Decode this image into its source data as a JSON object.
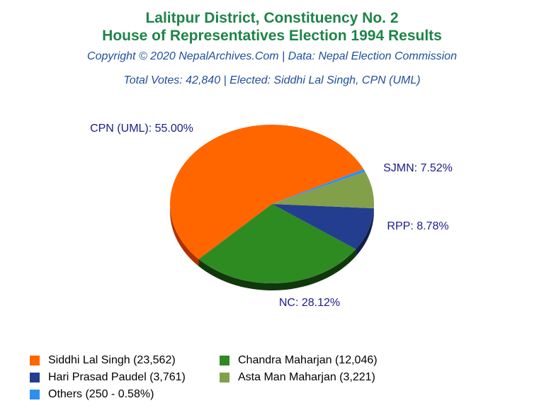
{
  "header": {
    "title_line1": "Lalitpur District, Constituency No. 2",
    "title_line2": "House of Representatives Election 1994 Results",
    "copyright": "Copyright © 2020 NepalArchives.Com | Data: Nepal Election Commission",
    "summary": "Total Votes: 42,840 | Elected: Siddhi Lal Singh, CPN (UML)"
  },
  "chart_data": {
    "type": "pie",
    "title": "House of Representatives Election 1994 Results",
    "slices": [
      {
        "label": "CPN (UML): 55.00%",
        "value": 55.0,
        "color": "#ff6600",
        "side": "#b03000"
      },
      {
        "label": "NC: 28.12%",
        "value": 28.12,
        "color": "#2e8b22",
        "side": "#10380c"
      },
      {
        "label": "RPP: 8.78%",
        "value": 8.78,
        "color": "#233e8f",
        "side": "#111f48"
      },
      {
        "label": "SJMN: 7.52%",
        "value": 7.52,
        "color": "#82a04a",
        "side": "#415025"
      },
      {
        "label": "",
        "value": 0.58,
        "color": "#2f8ff0",
        "side": "#174878"
      }
    ],
    "legend": [
      {
        "label": "Siddhi Lal Singh (23,562)",
        "color": "#ff6600"
      },
      {
        "label": "Chandra Maharjan (12,046)",
        "color": "#2e8b22"
      },
      {
        "label": "Hari Prasad Paudel (3,761)",
        "color": "#233e8f"
      },
      {
        "label": "Asta Man Maharjan (3,221)",
        "color": "#82a04a"
      },
      {
        "label": "Others (250 - 0.58%)",
        "color": "#2f8ff0"
      }
    ]
  }
}
